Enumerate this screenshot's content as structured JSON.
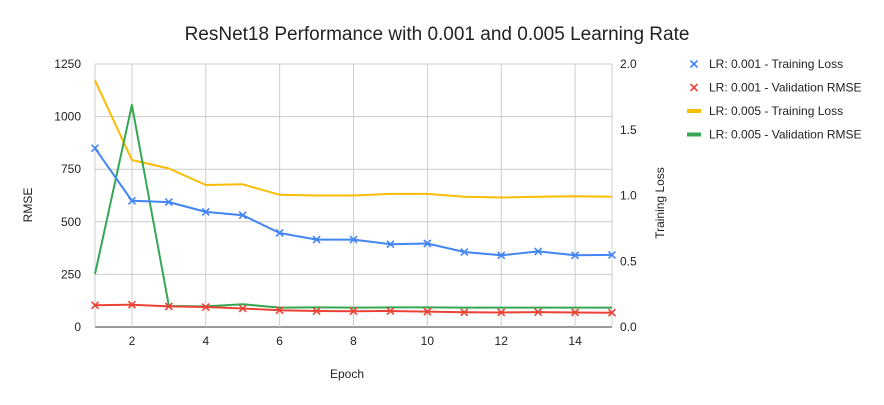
{
  "chart_data": {
    "type": "line",
    "title": "ResNet18 Performance with 0.001 and 0.005 Learning Rate",
    "xlabel": "Epoch",
    "ylabel_left": "RMSE",
    "ylabel_right": "Training Loss",
    "x": [
      1,
      2,
      3,
      4,
      5,
      6,
      7,
      8,
      9,
      10,
      11,
      12,
      13,
      14,
      15
    ],
    "xlim": [
      1,
      15
    ],
    "x_ticks": [
      "2",
      "4",
      "6",
      "8",
      "10",
      "12",
      "14"
    ],
    "y_left_lim": [
      0,
      1250
    ],
    "y_left_ticks": [
      "0",
      "250",
      "500",
      "750",
      "1000",
      "1250"
    ],
    "y_right_lim": [
      0,
      2.0
    ],
    "y_right_ticks": [
      "0.0",
      "0.5",
      "1.0",
      "1.5",
      "2.0"
    ],
    "grid": true,
    "legend_position": "right",
    "series": [
      {
        "name": "LR: 0.001 - Training Loss",
        "axis": "right",
        "color": "#4285F4",
        "marker": "x",
        "values": [
          1.36,
          0.96,
          0.95,
          0.875,
          0.85,
          0.715,
          0.665,
          0.665,
          0.63,
          0.635,
          0.57,
          0.545,
          0.575,
          0.545,
          0.548
        ]
      },
      {
        "name": "LR: 0.001 - Validation RMSE",
        "axis": "left",
        "color": "#EA4335",
        "marker": "x",
        "values": [
          103,
          106,
          98,
          95,
          88,
          80,
          76,
          75,
          76,
          73,
          70,
          69,
          71,
          69,
          68
        ]
      },
      {
        "name": "LR: 0.005 - Training Loss",
        "axis": "right",
        "color": "#FBBC04",
        "marker": "none",
        "values": [
          1.875,
          1.27,
          1.205,
          1.08,
          1.085,
          1.005,
          1.0,
          1.0,
          1.012,
          1.012,
          0.99,
          0.985,
          0.99,
          0.995,
          0.99
        ]
      },
      {
        "name": "LR: 0.005 - Validation RMSE",
        "axis": "left",
        "color": "#34A853",
        "marker": "none",
        "values": [
          252,
          1055,
          100,
          98,
          108,
          92,
          93,
          92,
          93,
          93,
          92,
          92,
          92,
          92,
          92
        ]
      }
    ]
  }
}
